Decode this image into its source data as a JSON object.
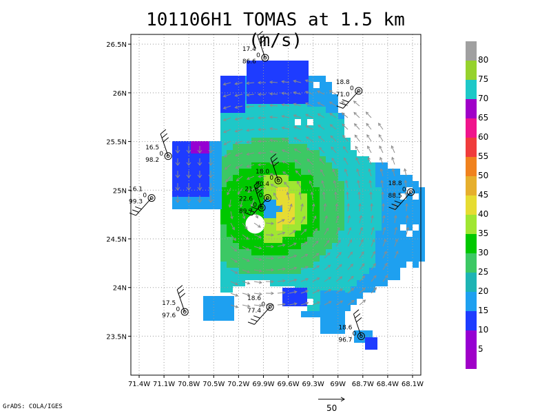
{
  "title": "101106H1 TOMAS at 1.5 km (m/s)",
  "credit": "GrADS: COLA/IGES",
  "scale_vector_label": "50",
  "map": {
    "lon_range": [
      -71.5,
      -68.0
    ],
    "lat_range": [
      23.1,
      26.6
    ],
    "x_ticks": [
      "71.4W",
      "71.1W",
      "70.8W",
      "70.5W",
      "70.2W",
      "69.9W",
      "69.6W",
      "69.3W",
      "69W",
      "68.7W",
      "68.4W",
      "68.1W"
    ],
    "x_tick_values": [
      -71.4,
      -71.1,
      -70.8,
      -70.5,
      -70.2,
      -69.9,
      -69.6,
      -69.3,
      -69.0,
      -68.7,
      -68.4,
      -68.1
    ],
    "y_ticks": [
      "23.5N",
      "24N",
      "24.5N",
      "25N",
      "25.5N",
      "26N",
      "26.5N"
    ],
    "y_tick_values": [
      23.5,
      24.0,
      24.5,
      25.0,
      25.5,
      26.0,
      26.5
    ],
    "grid": true,
    "storm_center": [
      -69.85,
      24.85
    ]
  },
  "colorbar": {
    "levels": [
      "80",
      "75",
      "70",
      "65",
      "60",
      "55",
      "50",
      "45",
      "40",
      "35",
      "30",
      "25",
      "20",
      "15",
      "10",
      "5"
    ],
    "colors": [
      "#a0a0a0",
      "#96d22d",
      "#1ec8c8",
      "#a000c8",
      "#f0148c",
      "#f03c3c",
      "#f0821e",
      "#e6af2d",
      "#e6dc32",
      "#a0e632",
      "#00c800",
      "#3cc864",
      "#1eb4b4",
      "#1ea0f0",
      "#1e3cff",
      "#9600d2",
      "#a000c8"
    ]
  },
  "stations": [
    {
      "lines": [
        "17.4",
        "0",
        "86.6"
      ],
      "lon": -69.88,
      "lat": 26.36
    },
    {
      "lines": [
        "18.8",
        "0",
        "71.0"
      ],
      "lon": -68.75,
      "lat": 26.02
    },
    {
      "lines": [
        "16.5",
        "0",
        "98.2"
      ],
      "lon": -71.05,
      "lat": 25.35
    },
    {
      "lines": [
        "16.1",
        "0",
        "99.3"
      ],
      "lon": -71.25,
      "lat": 24.92
    },
    {
      "lines": [
        "18.0",
        "0",
        "90.4"
      ],
      "lon": -69.72,
      "lat": 25.1
    },
    {
      "lines": [
        "21.6",
        "0"
      ],
      "lon": -69.85,
      "lat": 24.92
    },
    {
      "lines": [
        "22.6",
        "0",
        "89.7"
      ],
      "lon": -69.92,
      "lat": 24.82
    },
    {
      "lines": [
        "18.8",
        "0",
        "88.5"
      ],
      "lon": -68.12,
      "lat": 24.98
    },
    {
      "lines": [
        "17.5",
        "0",
        "97.6"
      ],
      "lon": -70.85,
      "lat": 23.75
    },
    {
      "lines": [
        "18.6",
        "0",
        "77.4"
      ],
      "lon": -69.82,
      "lat": 23.8
    },
    {
      "lines": [
        "18.6",
        "0",
        "96.7"
      ],
      "lon": -68.72,
      "lat": 23.5
    }
  ]
}
